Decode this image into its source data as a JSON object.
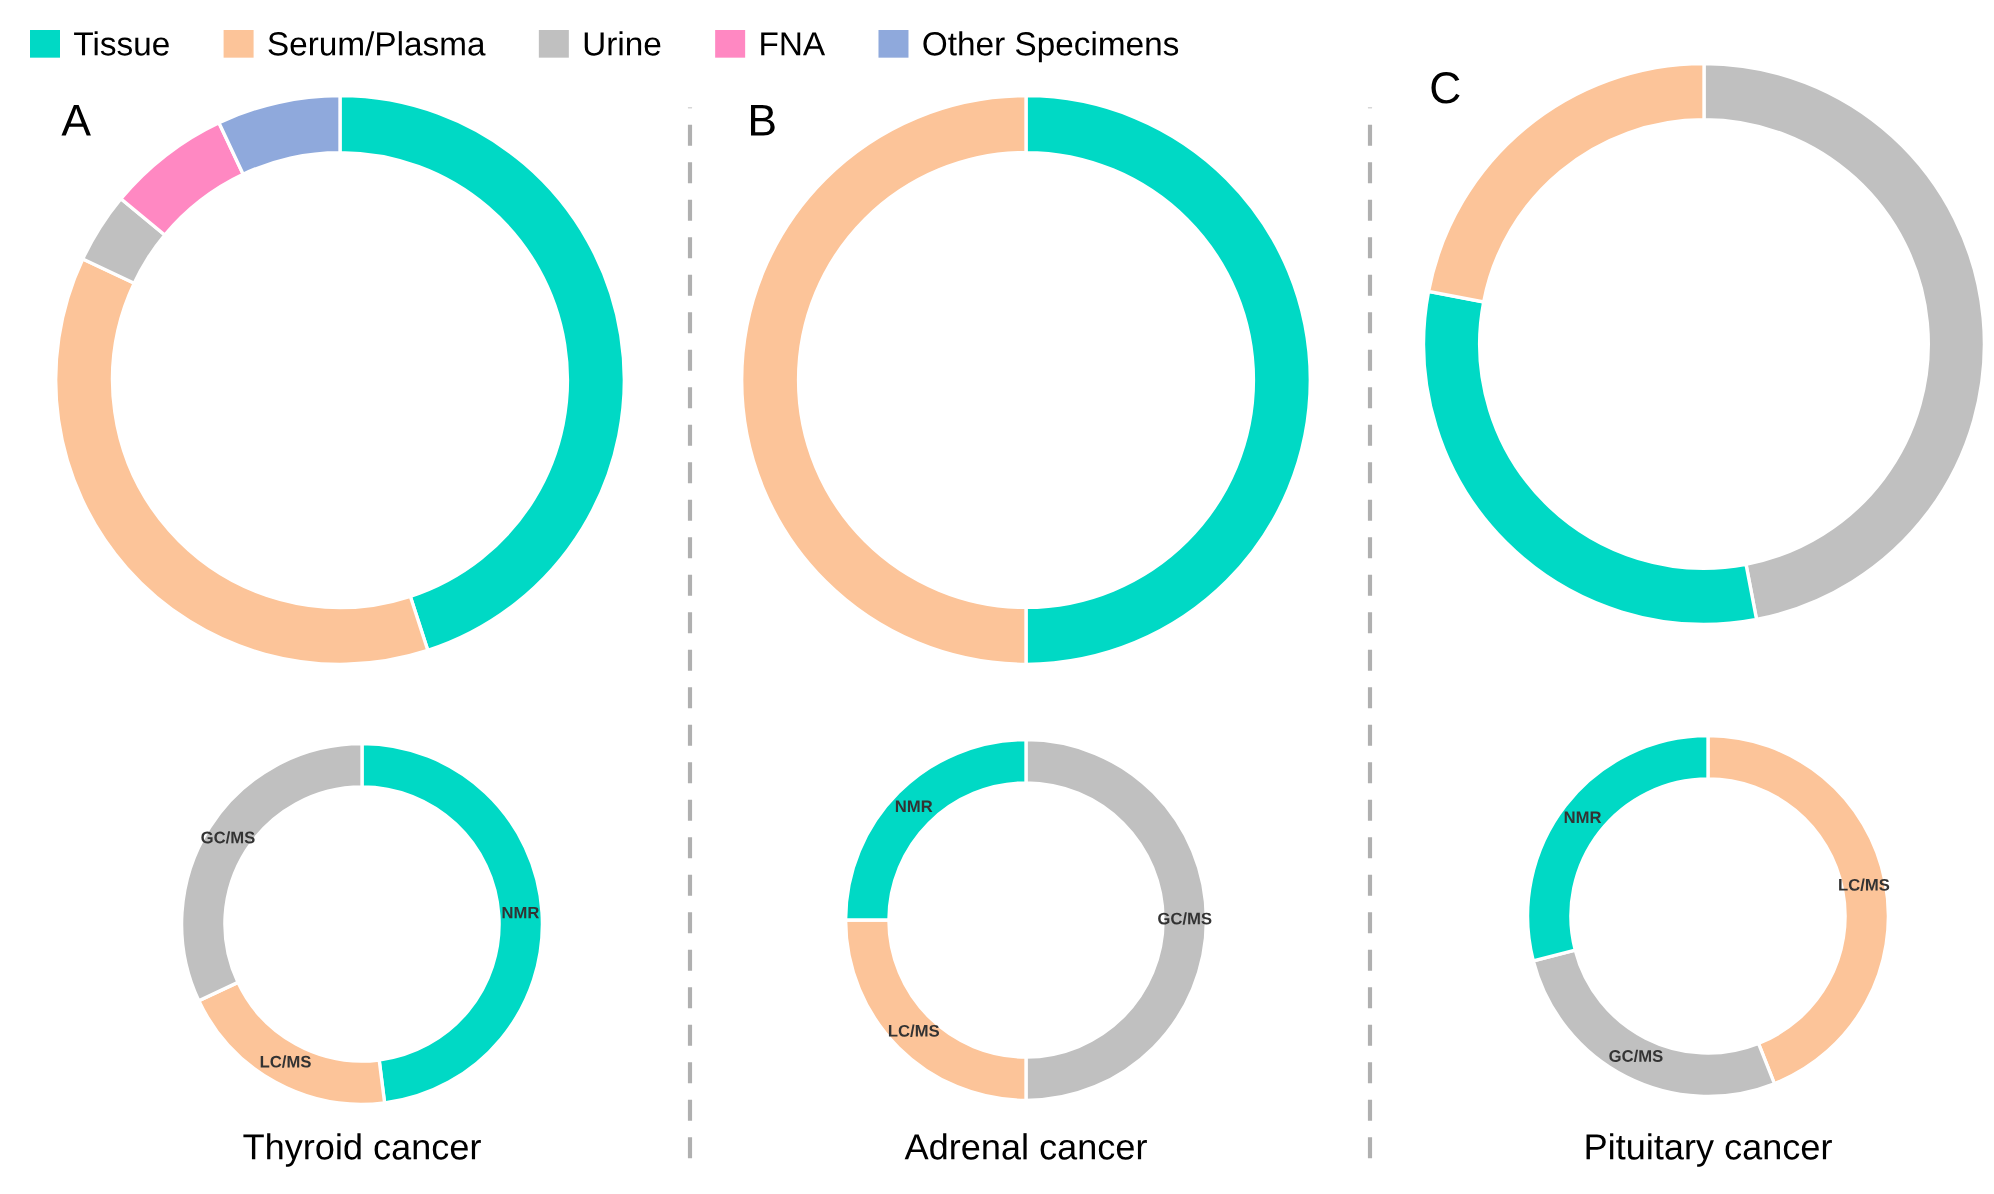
{
  "chart_data": [
    {
      "type": "donut",
      "title": "A",
      "legend": "top",
      "categories": [
        "Tissue",
        "Serum/Plasma",
        "Urine",
        "FNA",
        "Other Specimens"
      ],
      "values": [
        45,
        37,
        4,
        7,
        7
      ],
      "colors": [
        "#00d9c5",
        "#fcc499",
        "#c0c0c0",
        "#ff88c2",
        "#8fa9dc"
      ]
    },
    {
      "type": "donut",
      "xlabel": "Thyroid cancer",
      "categories": [
        "NMR",
        "LC/MS",
        "GC/MS"
      ],
      "values": [
        48,
        20,
        32
      ],
      "colors": [
        "#00d9c5",
        "#fcc499",
        "#c0c0c0"
      ]
    },
    {
      "type": "donut",
      "title": "B",
      "categories": [
        null,
        null
      ],
      "values": [
        50,
        50
      ],
      "colors": [
        "#00d9c5",
        "#fcc499"
      ]
    },
    {
      "type": "donut",
      "xlabel": "Adrenal cancer",
      "categories": [
        "GC/MS",
        "LC/MS",
        "NMR"
      ],
      "values": [
        50,
        25,
        25
      ],
      "colors": [
        "#c0c0c0",
        "#fcc499",
        "#00d9c5"
      ]
    },
    {
      "type": "donut",
      "title": "C",
      "categories": [
        null,
        null,
        null
      ],
      "values": [
        47,
        31,
        22
      ],
      "colors": [
        "#c0c0c0",
        "#00d9c5",
        "#fcc499"
      ]
    },
    {
      "type": "donut",
      "xlabel": "Pituitary cancer",
      "categories": [
        "LC/MS",
        "GC/MS",
        "NMR"
      ],
      "values": [
        44,
        27,
        29
      ],
      "colors": [
        "#fcc499",
        "#c0c0c0",
        "#00d9c5"
      ]
    }
  ]
}
